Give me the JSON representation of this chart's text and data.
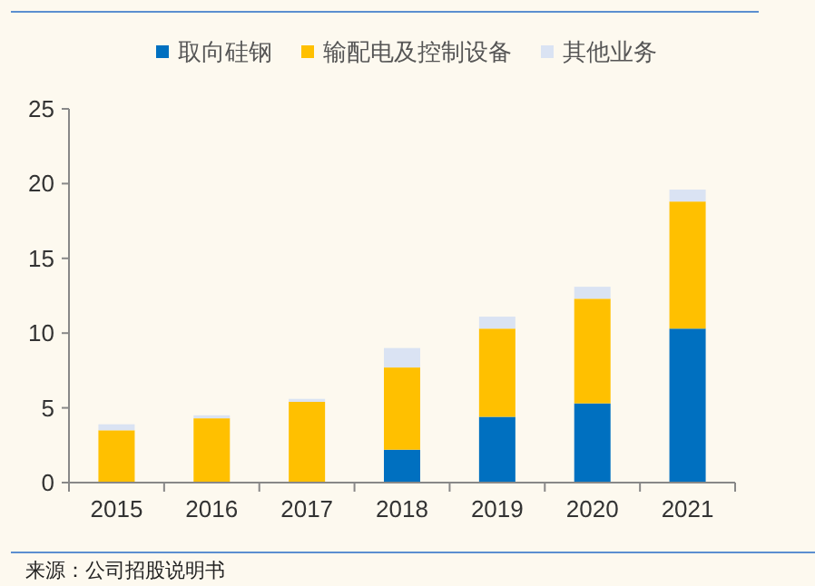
{
  "chart_data": {
    "type": "bar",
    "stacked": true,
    "legend": "top",
    "grid": false,
    "categories": [
      "2015",
      "2016",
      "2017",
      "2018",
      "2019",
      "2020",
      "2021"
    ],
    "series": [
      {
        "name": "取向硅钢",
        "color": "#0070c0",
        "values": [
          0,
          0,
          0,
          2.2,
          4.4,
          5.3,
          10.3
        ]
      },
      {
        "name": "输配电及控制设备",
        "color": "#ffc000",
        "values": [
          3.5,
          4.3,
          5.4,
          5.5,
          5.9,
          7.0,
          8.5
        ]
      },
      {
        "name": "其他业务",
        "color": "#dae3f3",
        "values": [
          0.4,
          0.2,
          0.2,
          1.3,
          0.8,
          0.8,
          0.8
        ]
      }
    ],
    "ylim": [
      0,
      25
    ],
    "yticks": [
      0,
      5,
      10,
      15,
      20,
      25
    ],
    "annotations": [
      "来源：公司招股说明书"
    ]
  }
}
